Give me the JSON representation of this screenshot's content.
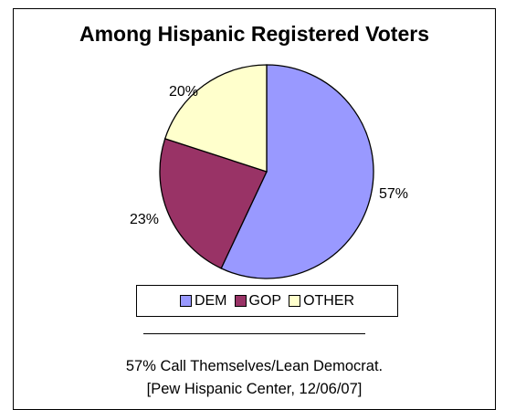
{
  "chart_data": {
    "type": "pie",
    "title": "Among Hispanic Registered Voters",
    "slices": [
      {
        "label": "DEM",
        "value": 57,
        "display": "57%",
        "color": "#9999ff"
      },
      {
        "label": "GOP",
        "value": 23,
        "display": "23%",
        "color": "#993366"
      },
      {
        "label": "OTHER",
        "value": 20,
        "display": "20%",
        "color": "#ffffcc"
      }
    ],
    "start": "12 o'clock",
    "direction": "clockwise"
  },
  "legend": {
    "items": [
      {
        "label": "DEM",
        "color": "#9999ff"
      },
      {
        "label": "GOP",
        "color": "#993366"
      },
      {
        "label": "OTHER",
        "color": "#ffffcc"
      }
    ]
  },
  "caption": {
    "line1": "57% Call Themselves/Lean Democrat.",
    "line2": "[Pew Hispanic Center, 12/06/07]"
  }
}
